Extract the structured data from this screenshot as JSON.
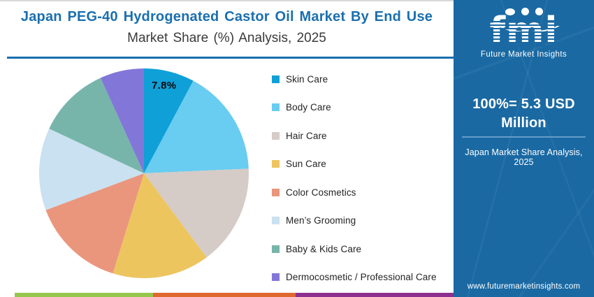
{
  "theme": {
    "accent_blue": "#1a6fae",
    "sidebar_blue": "#1a69a3"
  },
  "chart_data": {
    "type": "pie",
    "title": "Japan PEG-40 Hydrogenated Castor Oil Market By End Use",
    "subtitle": "Market Share (%) Analysis, 2025",
    "unit": "%",
    "start_angle_deg": 0,
    "direction": "clockwise",
    "legend_position": "right",
    "annotation": {
      "text": "7.8%",
      "slice": "Skin Care"
    },
    "slices": [
      {
        "label": "Skin Care",
        "value": 7.8,
        "color": "#0fa0d8"
      },
      {
        "label": "Body Care",
        "value": 16.5,
        "color": "#69ccf1"
      },
      {
        "label": "Hair Care",
        "value": 15.5,
        "color": "#d5cbc7"
      },
      {
        "label": "Sun Care",
        "value": 15.0,
        "color": "#edc55f"
      },
      {
        "label": "Color Cosmetics",
        "value": 14.5,
        "color": "#ea967d"
      },
      {
        "label": "Men’s Grooming",
        "value": 12.7,
        "color": "#c9e1f0"
      },
      {
        "label": "Baby & Kids Care",
        "value": 11.2,
        "color": "#77b5ab"
      },
      {
        "label": "Dermocosmetic / Professional Care",
        "value": 6.8,
        "color": "#8277d8"
      }
    ]
  },
  "sidebar": {
    "logo": {
      "text": "fmi",
      "tagline": "Future Market Insights"
    },
    "stat": "100%= 5.3 USD Million",
    "caption": "Japan Market Share Analysis, 2025",
    "website": "www.futuremarketinsights.com"
  },
  "footer_stripes": [
    "#96c64c",
    "#e06930",
    "#8d2f8f"
  ]
}
